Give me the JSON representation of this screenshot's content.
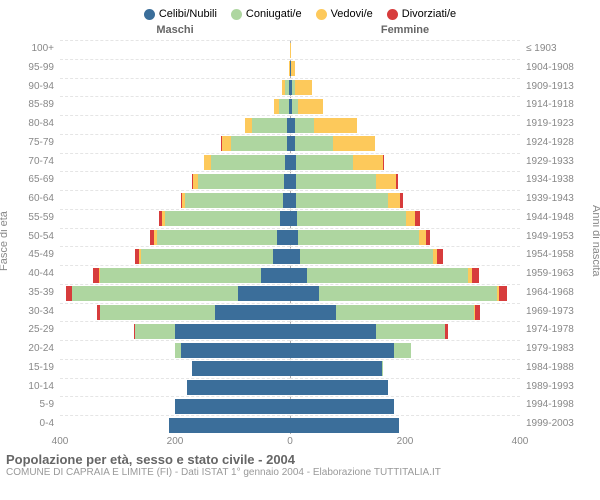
{
  "legend": [
    {
      "label": "Celibi/Nubili",
      "color": "#3b6e9a"
    },
    {
      "label": "Coniugati/e",
      "color": "#aed6a0"
    },
    {
      "label": "Vedovi/e",
      "color": "#fdc95b"
    },
    {
      "label": "Divorziati/e",
      "color": "#d73c3c"
    }
  ],
  "colors": {
    "single": "#3b6e9a",
    "married": "#aed6a0",
    "widowed": "#fdc95b",
    "divorced": "#d73c3c",
    "grid": "#e5e5e5",
    "axis_text": "#888888",
    "center_line": "#aaaaaa",
    "background": "#ffffff"
  },
  "headers": {
    "male": "Maschi",
    "female": "Femmine"
  },
  "y_axis_left_label": "Fasce di età",
  "y_axis_right_label": "Anni di nascita",
  "x_axis": {
    "max": 400,
    "ticks": [
      400,
      200,
      0,
      200,
      400
    ]
  },
  "title": "Popolazione per età, sesso e stato civile - 2004",
  "subtitle": "COMUNE DI CAPRAIA E LIMITE (FI) - Dati ISTAT 1° gennaio 2004 - Elaborazione TUTTITALIA.IT",
  "rows": [
    {
      "age": "100+",
      "years": "≤ 1903",
      "m": {
        "s": 0,
        "m": 0,
        "w": 0,
        "d": 0
      },
      "f": {
        "s": 0,
        "m": 0,
        "w": 2,
        "d": 0
      }
    },
    {
      "age": "95-99",
      "years": "1904-1908",
      "m": {
        "s": 0,
        "m": 0,
        "w": 2,
        "d": 0
      },
      "f": {
        "s": 2,
        "m": 0,
        "w": 6,
        "d": 0
      }
    },
    {
      "age": "90-94",
      "years": "1909-1913",
      "m": {
        "s": 2,
        "m": 6,
        "w": 6,
        "d": 0
      },
      "f": {
        "s": 4,
        "m": 4,
        "w": 30,
        "d": 0
      }
    },
    {
      "age": "85-89",
      "years": "1914-1918",
      "m": {
        "s": 2,
        "m": 18,
        "w": 8,
        "d": 0
      },
      "f": {
        "s": 4,
        "m": 10,
        "w": 44,
        "d": 0
      }
    },
    {
      "age": "80-84",
      "years": "1919-1923",
      "m": {
        "s": 6,
        "m": 60,
        "w": 12,
        "d": 0
      },
      "f": {
        "s": 8,
        "m": 34,
        "w": 74,
        "d": 0
      }
    },
    {
      "age": "75-79",
      "years": "1924-1928",
      "m": {
        "s": 6,
        "m": 96,
        "w": 16,
        "d": 2
      },
      "f": {
        "s": 8,
        "m": 66,
        "w": 74,
        "d": 0
      }
    },
    {
      "age": "70-74",
      "years": "1929-1933",
      "m": {
        "s": 8,
        "m": 130,
        "w": 12,
        "d": 0
      },
      "f": {
        "s": 10,
        "m": 100,
        "w": 52,
        "d": 2
      }
    },
    {
      "age": "65-69",
      "years": "1934-1938",
      "m": {
        "s": 10,
        "m": 150,
        "w": 8,
        "d": 2
      },
      "f": {
        "s": 10,
        "m": 140,
        "w": 34,
        "d": 4
      }
    },
    {
      "age": "60-64",
      "years": "1939-1943",
      "m": {
        "s": 12,
        "m": 170,
        "w": 6,
        "d": 2
      },
      "f": {
        "s": 10,
        "m": 160,
        "w": 22,
        "d": 4
      }
    },
    {
      "age": "55-59",
      "years": "1944-1948",
      "m": {
        "s": 18,
        "m": 200,
        "w": 4,
        "d": 6
      },
      "f": {
        "s": 12,
        "m": 190,
        "w": 16,
        "d": 8
      }
    },
    {
      "age": "50-54",
      "years": "1949-1953",
      "m": {
        "s": 22,
        "m": 210,
        "w": 4,
        "d": 8
      },
      "f": {
        "s": 14,
        "m": 210,
        "w": 12,
        "d": 8
      }
    },
    {
      "age": "45-49",
      "years": "1954-1958",
      "m": {
        "s": 30,
        "m": 230,
        "w": 2,
        "d": 8
      },
      "f": {
        "s": 18,
        "m": 230,
        "w": 8,
        "d": 10
      }
    },
    {
      "age": "40-44",
      "years": "1959-1963",
      "m": {
        "s": 50,
        "m": 280,
        "w": 2,
        "d": 10
      },
      "f": {
        "s": 30,
        "m": 280,
        "w": 6,
        "d": 12
      }
    },
    {
      "age": "35-39",
      "years": "1964-1968",
      "m": {
        "s": 90,
        "m": 290,
        "w": 0,
        "d": 10
      },
      "f": {
        "s": 50,
        "m": 310,
        "w": 4,
        "d": 14
      }
    },
    {
      "age": "30-34",
      "years": "1969-1973",
      "m": {
        "s": 130,
        "m": 200,
        "w": 0,
        "d": 6
      },
      "f": {
        "s": 80,
        "m": 240,
        "w": 2,
        "d": 8
      }
    },
    {
      "age": "25-29",
      "years": "1974-1978",
      "m": {
        "s": 200,
        "m": 70,
        "w": 0,
        "d": 2
      },
      "f": {
        "s": 150,
        "m": 120,
        "w": 0,
        "d": 4
      }
    },
    {
      "age": "20-24",
      "years": "1979-1983",
      "m": {
        "s": 190,
        "m": 10,
        "w": 0,
        "d": 0
      },
      "f": {
        "s": 180,
        "m": 30,
        "w": 0,
        "d": 0
      }
    },
    {
      "age": "15-19",
      "years": "1984-1988",
      "m": {
        "s": 170,
        "m": 0,
        "w": 0,
        "d": 0
      },
      "f": {
        "s": 160,
        "m": 2,
        "w": 0,
        "d": 0
      }
    },
    {
      "age": "10-14",
      "years": "1989-1993",
      "m": {
        "s": 180,
        "m": 0,
        "w": 0,
        "d": 0
      },
      "f": {
        "s": 170,
        "m": 0,
        "w": 0,
        "d": 0
      }
    },
    {
      "age": "5-9",
      "years": "1994-1998",
      "m": {
        "s": 200,
        "m": 0,
        "w": 0,
        "d": 0
      },
      "f": {
        "s": 180,
        "m": 0,
        "w": 0,
        "d": 0
      }
    },
    {
      "age": "0-4",
      "years": "1999-2003",
      "m": {
        "s": 210,
        "m": 0,
        "w": 0,
        "d": 0
      },
      "f": {
        "s": 190,
        "m": 0,
        "w": 0,
        "d": 0
      }
    }
  ]
}
